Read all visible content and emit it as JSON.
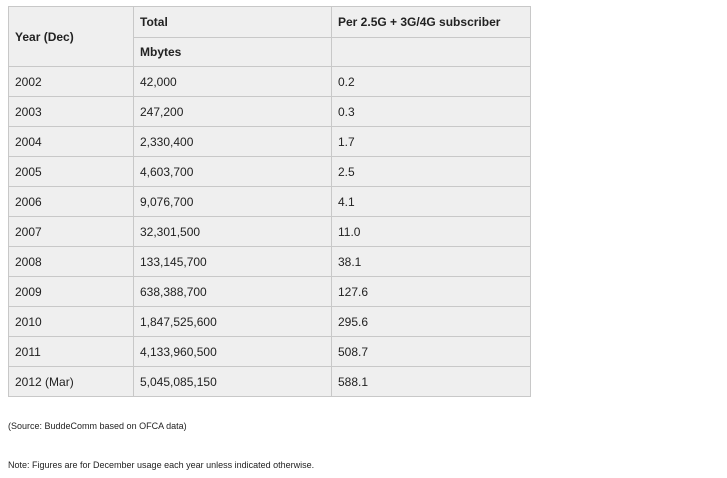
{
  "table": {
    "headers": {
      "col1": "Year (Dec)",
      "col2_line1": "Total",
      "col2_line2": "Mbytes",
      "col3": "Per 2.5G + 3G/4G subscriber"
    },
    "rows": [
      {
        "year": "2002",
        "total": "42,000",
        "per_sub": "0.2"
      },
      {
        "year": "2003",
        "total": "247,200",
        "per_sub": "0.3"
      },
      {
        "year": "2004",
        "total": "2,330,400",
        "per_sub": "1.7"
      },
      {
        "year": "2005",
        "total": "4,603,700",
        "per_sub": "2.5"
      },
      {
        "year": "2006",
        "total": "9,076,700",
        "per_sub": "4.1"
      },
      {
        "year": "2007",
        "total": "32,301,500",
        "per_sub": "11.0"
      },
      {
        "year": "2008",
        "total": "133,145,700",
        "per_sub": "38.1"
      },
      {
        "year": "2009",
        "total": "638,388,700",
        "per_sub": "127.6"
      },
      {
        "year": "2010",
        "total": "1,847,525,600",
        "per_sub": "295.6"
      },
      {
        "year": "2011",
        "total": "4,133,960,500",
        "per_sub": "508.7"
      },
      {
        "year": "2012 (Mar)",
        "total": "5,045,085,150",
        "per_sub": "588.1"
      }
    ]
  },
  "source_note": "(Source: BuddeComm based on OFCA data)",
  "footnote": "Note: Figures are for December usage each year unless indicated otherwise."
}
